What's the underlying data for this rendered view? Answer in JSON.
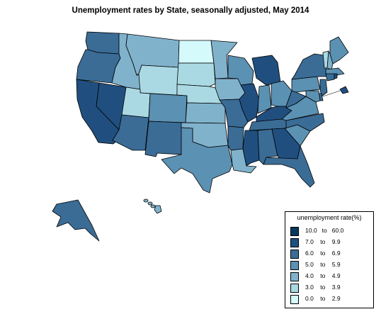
{
  "title": "Unemployment rates by State, seasonally adjusted,  May  2014",
  "legend": {
    "title": "unemployment rate(%)",
    "bins": [
      {
        "label": "10.0   to   60.0",
        "color": "#08385e"
      },
      {
        "label": "7.0    to    9.9",
        "color": "#204f7f"
      },
      {
        "label": "6.0    to    6.9",
        "color": "#3a6c96"
      },
      {
        "label": "5.0    to    5.9",
        "color": "#5b91b3"
      },
      {
        "label": "4.0    to    4.9",
        "color": "#80b2cc"
      },
      {
        "label": "3.0    to    3.9",
        "color": "#aad9e3"
      },
      {
        "label": "0.0    to    2.9",
        "color": "#d4fafc"
      }
    ]
  },
  "chart_data": {
    "type": "choropleth",
    "regions": [
      {
        "state": "Washington",
        "bin": "6.0 to 6.9"
      },
      {
        "state": "Oregon",
        "bin": "6.0 to 6.9"
      },
      {
        "state": "California",
        "bin": "7.0 to 9.9"
      },
      {
        "state": "Nevada",
        "bin": "7.0 to 9.9"
      },
      {
        "state": "Idaho",
        "bin": "4.0 to 4.9"
      },
      {
        "state": "Montana",
        "bin": "4.0 to 4.9"
      },
      {
        "state": "Wyoming",
        "bin": "3.0 to 3.9"
      },
      {
        "state": "Utah",
        "bin": "3.0 to 3.9"
      },
      {
        "state": "Arizona",
        "bin": "6.0 to 6.9"
      },
      {
        "state": "Colorado",
        "bin": "5.0 to 5.9"
      },
      {
        "state": "New Mexico",
        "bin": "6.0 to 6.9"
      },
      {
        "state": "North Dakota",
        "bin": "0.0 to 2.9"
      },
      {
        "state": "South Dakota",
        "bin": "3.0 to 3.9"
      },
      {
        "state": "Nebraska",
        "bin": "3.0 to 3.9"
      },
      {
        "state": "Kansas",
        "bin": "4.0 to 4.9"
      },
      {
        "state": "Oklahoma",
        "bin": "4.0 to 4.9"
      },
      {
        "state": "Texas",
        "bin": "5.0 to 5.9"
      },
      {
        "state": "Minnesota",
        "bin": "4.0 to 4.9"
      },
      {
        "state": "Iowa",
        "bin": "4.0 to 4.9"
      },
      {
        "state": "Missouri",
        "bin": "6.0 to 6.9"
      },
      {
        "state": "Arkansas",
        "bin": "6.0 to 6.9"
      },
      {
        "state": "Louisiana",
        "bin": "4.0 to 4.9"
      },
      {
        "state": "Wisconsin",
        "bin": "5.0 to 5.9"
      },
      {
        "state": "Illinois",
        "bin": "7.0 to 9.9"
      },
      {
        "state": "Michigan",
        "bin": "7.0 to 9.9"
      },
      {
        "state": "Indiana",
        "bin": "5.0 to 5.9"
      },
      {
        "state": "Ohio",
        "bin": "5.0 to 5.9"
      },
      {
        "state": "Kentucky",
        "bin": "7.0 to 9.9"
      },
      {
        "state": "Tennessee",
        "bin": "6.0 to 6.9"
      },
      {
        "state": "Mississippi",
        "bin": "7.0 to 9.9"
      },
      {
        "state": "Alabama",
        "bin": "6.0 to 6.9"
      },
      {
        "state": "Georgia",
        "bin": "7.0 to 9.9"
      },
      {
        "state": "Florida",
        "bin": "6.0 to 6.9"
      },
      {
        "state": "South Carolina",
        "bin": "5.0 to 5.9"
      },
      {
        "state": "North Carolina",
        "bin": "6.0 to 6.9"
      },
      {
        "state": "Virginia",
        "bin": "5.0 to 5.9"
      },
      {
        "state": "West Virginia",
        "bin": "6.0 to 6.9"
      },
      {
        "state": "Pennsylvania",
        "bin": "5.0 to 5.9"
      },
      {
        "state": "New York",
        "bin": "6.0 to 6.9"
      },
      {
        "state": "Maine",
        "bin": "5.0 to 5.9"
      },
      {
        "state": "Vermont",
        "bin": "3.0 to 3.9"
      },
      {
        "state": "New Hampshire",
        "bin": "4.0 to 4.9"
      },
      {
        "state": "Massachusetts",
        "bin": "5.0 to 5.9"
      },
      {
        "state": "Connecticut",
        "bin": "6.0 to 6.9"
      },
      {
        "state": "Rhode Island",
        "bin": "7.0 to 9.9"
      },
      {
        "state": "New Jersey",
        "bin": "6.0 to 6.9"
      },
      {
        "state": "Delaware",
        "bin": "6.0 to 6.9"
      },
      {
        "state": "Maryland",
        "bin": "5.0 to 5.9"
      },
      {
        "state": "District of Columbia",
        "bin": "7.0 to 9.9"
      },
      {
        "state": "Alaska",
        "bin": "6.0 to 6.9"
      },
      {
        "state": "Hawaii",
        "bin": "4.0 to 4.9"
      }
    ]
  }
}
